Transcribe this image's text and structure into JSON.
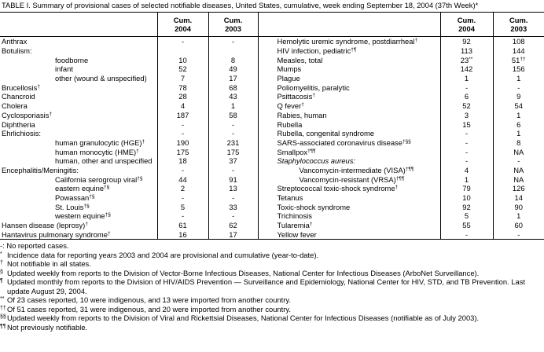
{
  "title": "TABLE I. Summary of provisional cases of selected notifiable diseases, United States, cumulative, week ending September 18, 2004 (37th Week)*",
  "table": {
    "columns": [
      "Cum. 2004",
      "Cum. 2003"
    ],
    "left_rows": [
      {
        "label": "Anthrax",
        "cum_2004": "-",
        "cum_2003": "-"
      },
      {
        "label": "Botulism:",
        "children": [
          {
            "label": "foodborne",
            "cum_2004": "10",
            "cum_2003": "8"
          },
          {
            "label": "infant",
            "cum_2004": "52",
            "cum_2003": "49"
          },
          {
            "label": "other (wound & unspecified)",
            "cum_2004": "7",
            "cum_2003": "17"
          }
        ]
      },
      {
        "label": "Brucellosis",
        "note": "†",
        "cum_2004": "78",
        "cum_2003": "68"
      },
      {
        "label": "Chancroid",
        "cum_2004": "28",
        "cum_2003": "43"
      },
      {
        "label": "Cholera",
        "cum_2004": "4",
        "cum_2003": "1"
      },
      {
        "label": "Cyclosporiasis",
        "note": "†",
        "cum_2004": "187",
        "cum_2003": "58"
      },
      {
        "label": "Diphtheria",
        "cum_2004": "-",
        "cum_2003": "-"
      },
      {
        "label": "Ehrlichiosis:",
        "cum_2004": "-",
        "cum_2003": "-",
        "children": [
          {
            "label": "human granulocytic (HGE)",
            "note": "†",
            "cum_2004": "190",
            "cum_2003": "231"
          },
          {
            "label": "human monocytic (HME)",
            "note": "†",
            "cum_2004": "175",
            "cum_2003": "175"
          },
          {
            "label": "human, other and unspecified",
            "cum_2004": "18",
            "cum_2003": "37"
          }
        ]
      },
      {
        "label": "Encephalitis/Meningitis:",
        "cum_2004": "-",
        "cum_2003": "-",
        "children": [
          {
            "label": "California serogroup viral",
            "note": "†§",
            "cum_2004": "44",
            "cum_2003": "91"
          },
          {
            "label": "eastern equine",
            "note": "†§",
            "cum_2004": "2",
            "cum_2003": "13"
          },
          {
            "label": "Powassan",
            "note": "†§",
            "cum_2004": "-",
            "cum_2003": "-"
          },
          {
            "label": "St. Louis",
            "note": "†§",
            "cum_2004": "5",
            "cum_2003": "33"
          },
          {
            "label": "western equine",
            "note": "†§",
            "cum_2004": "-",
            "cum_2003": "-"
          }
        ]
      },
      {
        "label": "Hansen disease (leprosy)",
        "note": "†",
        "cum_2004": "61",
        "cum_2003": "62"
      },
      {
        "label": "Hantavirus pulmonary syndrome",
        "note": "†",
        "cum_2004": "16",
        "cum_2003": "17"
      }
    ],
    "right_rows": [
      {
        "label": "Hemolytic uremic syndrome, postdiarrheal",
        "note": "†",
        "cum_2004": "92",
        "cum_2003": "108"
      },
      {
        "label": "HIV infection, pediatric",
        "note": "†¶",
        "cum_2004": "113",
        "cum_2003": "144"
      },
      {
        "label": "Measles, total",
        "cum_2004": "23",
        "cum_2004_note": "**",
        "cum_2003": "51",
        "cum_2003_note": "††"
      },
      {
        "label": "Mumps",
        "cum_2004": "142",
        "cum_2003": "156"
      },
      {
        "label": "Plague",
        "cum_2004": "1",
        "cum_2003": "1"
      },
      {
        "label": "Poliomyelitis, paralytic",
        "cum_2004": "-",
        "cum_2003": "-"
      },
      {
        "label": "Psittacosis",
        "note": "†",
        "cum_2004": "6",
        "cum_2003": "9"
      },
      {
        "label": "Q fever",
        "note": "†",
        "cum_2004": "52",
        "cum_2003": "54"
      },
      {
        "label": "Rabies, human",
        "cum_2004": "3",
        "cum_2003": "1"
      },
      {
        "label": "Rubella",
        "cum_2004": "15",
        "cum_2003": "6"
      },
      {
        "label": "Rubella, congenital syndrome",
        "cum_2004": "-",
        "cum_2003": "1"
      },
      {
        "label": "SARS-associated coronavirus disease",
        "note": "†§§",
        "cum_2004": "-",
        "cum_2003": "8"
      },
      {
        "label": "Smallpox",
        "note": "†¶¶",
        "cum_2004": "-",
        "cum_2003": "NA"
      },
      {
        "label": "Staphylococcus aureus:",
        "italic": true,
        "cum_2004": "-",
        "cum_2003": "-",
        "children": [
          {
            "label": "Vancomycin-intermediate (VISA)",
            "note": "†¶¶",
            "cum_2004": "4",
            "cum_2003": "NA"
          },
          {
            "label": "Vancomycin-resistant (VRSA)",
            "note": "†¶¶",
            "cum_2004": "1",
            "cum_2003": "NA"
          }
        ]
      },
      {
        "label": "Streptococcal toxic-shock syndrome",
        "note": "†",
        "cum_2004": "79",
        "cum_2003": "126"
      },
      {
        "label": "Tetanus",
        "cum_2004": "10",
        "cum_2003": "14"
      },
      {
        "label": "Toxic-shock syndrome",
        "cum_2004": "92",
        "cum_2003": "90"
      },
      {
        "label": "Trichinosis",
        "cum_2004": "5",
        "cum_2003": "1"
      },
      {
        "label": "Tularemia",
        "note": "†",
        "cum_2004": "55",
        "cum_2003": "60"
      },
      {
        "label": "Yellow fever",
        "cum_2004": "-",
        "cum_2003": "-"
      }
    ]
  },
  "footnotes": [
    {
      "text": "-: No reported cases."
    },
    {
      "symbol": "*",
      "text": "Incidence data for reporting years 2003 and 2004 are provisional and cumulative (year-to-date)."
    },
    {
      "symbol": "†",
      "text": "Not notifiable in all states."
    },
    {
      "symbol": "§",
      "text": "Updated weekly from reports to the Division of Vector-Borne Infectious Diseases, National Center for Infectious Diseases (ArboNet Surveillance)."
    },
    {
      "symbol": "¶",
      "text": "Updated monthly from reports to the Division of HIV/AIDS Prevention — Surveillance and Epidemiology, National Center for HIV, STD, and TB Prevention. Last update August 29, 2004."
    },
    {
      "symbol": "**",
      "text": "Of 23 cases reported, 10 were indigenous, and 13 were imported from another country."
    },
    {
      "symbol": "††",
      "text": "Of 51 cases reported, 31 were indigenous, and 20 were imported from another country."
    },
    {
      "symbol": "§§",
      "text": "Updated weekly from reports to the Division of Viral and Rickettsial Diseases, National Center for Infectious Diseases (notifiable as of July 2003)."
    },
    {
      "symbol": "¶¶",
      "text": "Not previously notifiable."
    }
  ]
}
